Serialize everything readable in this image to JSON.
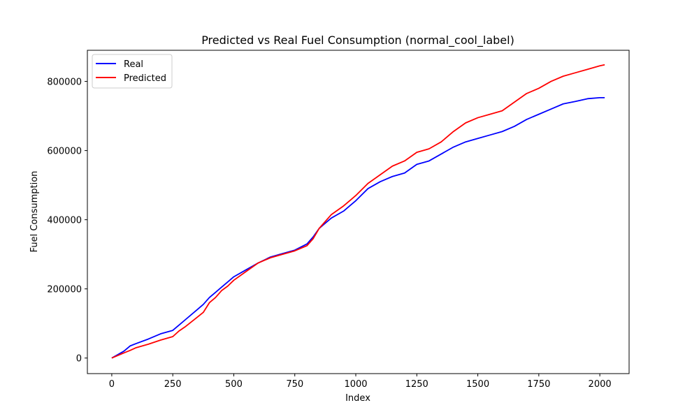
{
  "chart_data": {
    "type": "line",
    "title": "Predicted vs Real Fuel Consumption (normal_cool_label)",
    "xlabel": "Index",
    "ylabel": "Fuel Consumption",
    "xlim": [
      -100,
      2120
    ],
    "ylim": [
      -45000,
      890000
    ],
    "x_ticks": [
      0,
      250,
      500,
      750,
      1000,
      1250,
      1500,
      1750,
      2000
    ],
    "x_tick_labels": [
      "0",
      "250",
      "500",
      "750",
      "1000",
      "1250",
      "1500",
      "1750",
      "2000"
    ],
    "y_ticks": [
      0,
      200000,
      400000,
      600000,
      800000
    ],
    "y_tick_labels": [
      "0",
      "200000",
      "400000",
      "600000",
      "800000"
    ],
    "grid": false,
    "legend_position": "top-left",
    "series": [
      {
        "name": "Real",
        "color": "#0000ff",
        "x": [
          0,
          50,
          75,
          100,
          150,
          200,
          250,
          275,
          300,
          350,
          375,
          400,
          425,
          450,
          475,
          500,
          550,
          600,
          650,
          700,
          750,
          800,
          825,
          850,
          875,
          900,
          950,
          975,
          1000,
          1050,
          1100,
          1150,
          1200,
          1250,
          1300,
          1350,
          1400,
          1450,
          1500,
          1550,
          1600,
          1650,
          1700,
          1750,
          1800,
          1850,
          1900,
          1950,
          2000,
          2020
        ],
        "y": [
          0,
          20000,
          35000,
          42000,
          55000,
          70000,
          80000,
          95000,
          110000,
          140000,
          155000,
          175000,
          190000,
          205000,
          220000,
          235000,
          255000,
          275000,
          292000,
          302000,
          312000,
          330000,
          350000,
          375000,
          390000,
          405000,
          425000,
          440000,
          455000,
          490000,
          510000,
          525000,
          535000,
          560000,
          570000,
          590000,
          610000,
          625000,
          635000,
          645000,
          655000,
          670000,
          690000,
          705000,
          720000,
          735000,
          742000,
          750000,
          753000,
          753000
        ]
      },
      {
        "name": "Predicted",
        "color": "#ff0000",
        "x": [
          0,
          50,
          75,
          100,
          150,
          200,
          250,
          275,
          300,
          350,
          375,
          400,
          425,
          450,
          475,
          500,
          550,
          600,
          650,
          700,
          750,
          800,
          825,
          850,
          875,
          900,
          950,
          975,
          1000,
          1050,
          1100,
          1150,
          1200,
          1250,
          1300,
          1350,
          1400,
          1450,
          1500,
          1550,
          1600,
          1650,
          1700,
          1750,
          1800,
          1850,
          1900,
          1950,
          2000,
          2020
        ],
        "y": [
          0,
          15000,
          22000,
          30000,
          40000,
          52000,
          62000,
          78000,
          90000,
          118000,
          132000,
          160000,
          175000,
          195000,
          208000,
          225000,
          250000,
          275000,
          290000,
          300000,
          310000,
          325000,
          345000,
          375000,
          395000,
          415000,
          440000,
          455000,
          470000,
          505000,
          530000,
          555000,
          570000,
          595000,
          605000,
          625000,
          655000,
          680000,
          695000,
          705000,
          715000,
          740000,
          765000,
          780000,
          800000,
          815000,
          825000,
          835000,
          845000,
          848000
        ]
      }
    ]
  }
}
